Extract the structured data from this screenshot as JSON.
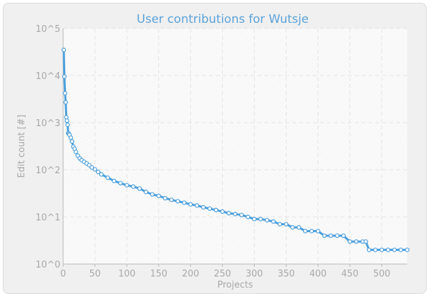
{
  "colors": {
    "title": "#5ba3d9",
    "series": "#4a9fdd",
    "marker_fill": "#ffffff",
    "axis_text": "#a8a8a8",
    "grid": "#e4e4e4",
    "plot_bg": "#fafafa",
    "frame_bg": "#f0f0f0"
  },
  "chart_data": {
    "type": "line",
    "title": "User contributions for Wutsje",
    "xlabel": "Projects",
    "ylabel": "Edit count [#]",
    "y_scale": "log",
    "xlim": [
      0,
      540
    ],
    "ylim": [
      1,
      100000
    ],
    "grid": true,
    "legend": "none",
    "x_ticks": [
      0,
      50,
      100,
      150,
      200,
      250,
      300,
      350,
      400,
      450,
      500
    ],
    "x_tick_labels": [
      "0",
      "50",
      "100",
      "150",
      "200",
      "250",
      "300",
      "350",
      "400",
      "450",
      "500"
    ],
    "y_ticks": [
      1,
      10,
      100,
      1000,
      10000,
      100000
    ],
    "y_tick_labels": [
      "10^0",
      "10^1",
      "10^2",
      "10^3",
      "10^4",
      "10^5"
    ],
    "series": [
      {
        "x": [
          1,
          2,
          3,
          4,
          5,
          6,
          7,
          8,
          9,
          10,
          12,
          14,
          16,
          18,
          20,
          23,
          26,
          29,
          33,
          37,
          41,
          45,
          50,
          55,
          60,
          70,
          80,
          90,
          100,
          110,
          120,
          130,
          140,
          150,
          160,
          170,
          180,
          190,
          200,
          210,
          220,
          230,
          240,
          250,
          260,
          270,
          280,
          290,
          300,
          310,
          320,
          330,
          340,
          350,
          360,
          370,
          380,
          390,
          400,
          410,
          420,
          430,
          440,
          450,
          460,
          470,
          475,
          480,
          490,
          500,
          510,
          520,
          530,
          540
        ],
        "y": [
          35000,
          9500,
          4200,
          2700,
          1300,
          1100,
          900,
          600,
          580,
          550,
          480,
          400,
          310,
          280,
          240,
          200,
          175,
          160,
          148,
          136,
          125,
          112,
          102,
          90,
          80,
          68,
          58,
          52,
          47,
          44,
          40,
          34,
          30,
          28,
          25,
          23,
          21.5,
          20,
          18.5,
          17.5,
          16,
          15,
          14,
          13,
          12,
          11.5,
          11,
          10,
          9,
          9,
          8.5,
          8,
          7,
          7,
          6,
          6,
          5,
          5,
          5,
          4,
          4,
          4,
          4,
          3,
          3,
          3,
          3,
          2,
          2,
          2,
          2,
          2,
          2,
          2
        ]
      }
    ]
  }
}
